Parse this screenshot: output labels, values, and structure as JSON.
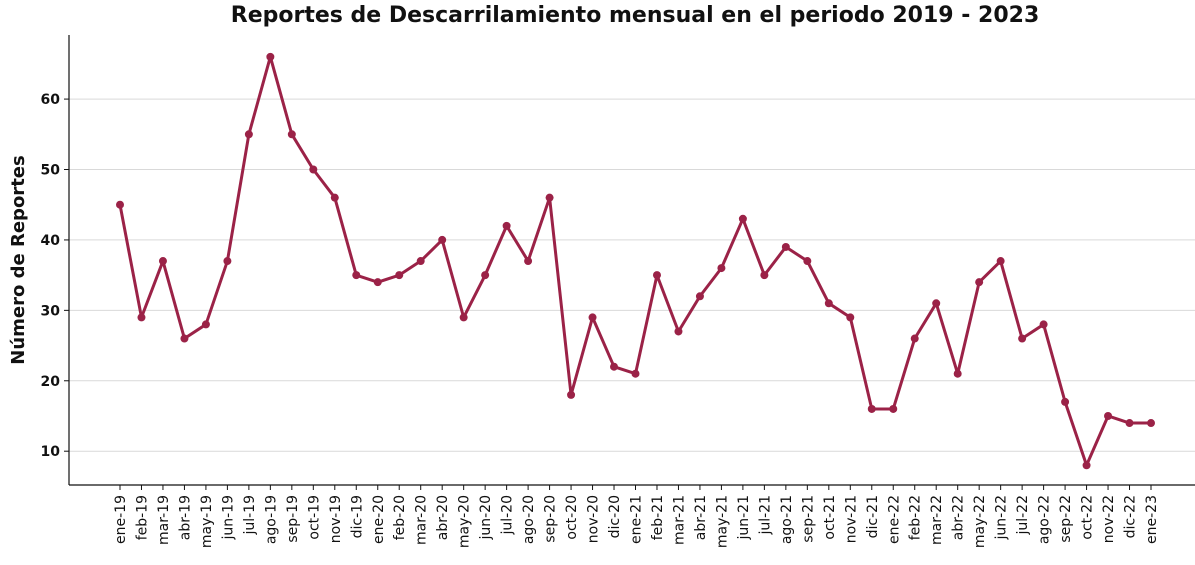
{
  "chart_data": {
    "type": "line",
    "title": "Reportes de Descarrilamiento mensual en el periodo 2019 - 2023",
    "y_label": "Número de Reportes",
    "categories": [
      "ene-19",
      "feb-19",
      "mar-19",
      "abr-19",
      "may-19",
      "jun-19",
      "jul-19",
      "ago-19",
      "sep-19",
      "oct-19",
      "nov-19",
      "dic-19",
      "ene-20",
      "feb-20",
      "mar-20",
      "abr-20",
      "may-20",
      "jun-20",
      "jul-20",
      "ago-20",
      "sep-20",
      "oct-20",
      "nov-20",
      "dic-20",
      "ene-21",
      "feb-21",
      "mar-21",
      "abr-21",
      "may-21",
      "jun-21",
      "jul-21",
      "ago-21",
      "sep-21",
      "oct-21",
      "nov-21",
      "dic-21",
      "ene-22",
      "feb-22",
      "mar-22",
      "abr-22",
      "may-22",
      "jun-22",
      "jul-22",
      "ago-22",
      "sep-22",
      "oct-22",
      "nov-22",
      "dic-22",
      "ene-23"
    ],
    "values": [
      45,
      29,
      37,
      26,
      28,
      37,
      55,
      66,
      55,
      50,
      46,
      35,
      34,
      35,
      37,
      40,
      29,
      35,
      42,
      37,
      46,
      18,
      29,
      22,
      21,
      35,
      27,
      32,
      36,
      43,
      35,
      39,
      37,
      31,
      29,
      16,
      16,
      26,
      31,
      21,
      34,
      37,
      26,
      28,
      17,
      8,
      15,
      14,
      14
    ],
    "color": "#9b2247",
    "ylim": [
      5.2,
      69.1
    ],
    "yticks": [
      10,
      20,
      30,
      40,
      50,
      60
    ],
    "grid": true
  }
}
